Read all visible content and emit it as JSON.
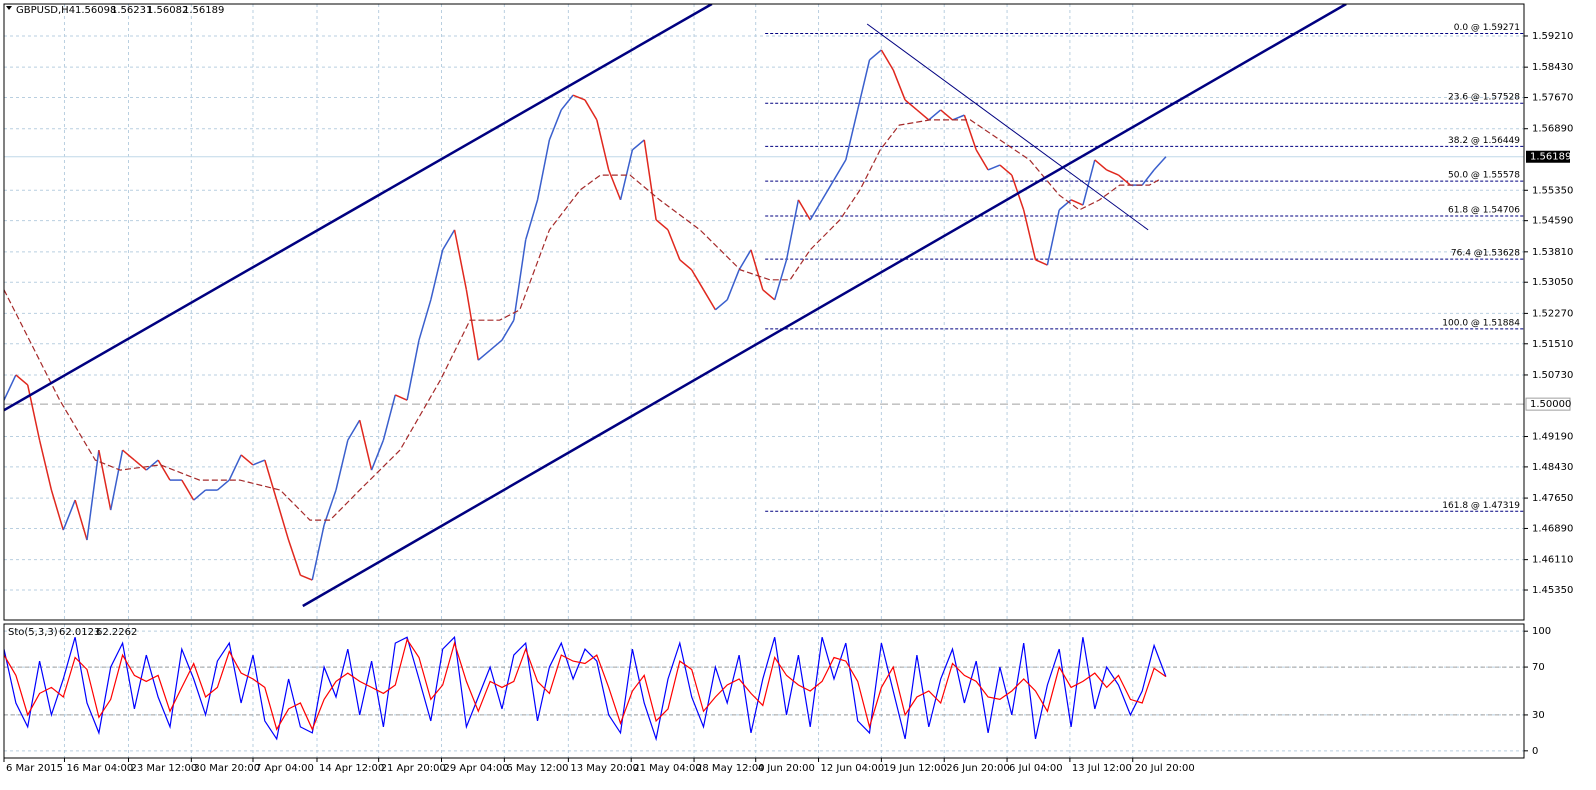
{
  "chart_data": [
    {
      "type": "line",
      "title": "GBPUSD,H4",
      "quote": [
        1.56098,
        1.56231,
        1.56082,
        1.56189
      ],
      "xlim": [
        0,
        128.2
      ],
      "ylim": [
        1.446,
        1.6001
      ],
      "grid": true,
      "xticks": [
        {
          "value": 0,
          "label": "6 Mar 2015"
        },
        {
          "value": 5.1,
          "label": "16 Mar 04:00"
        },
        {
          "value": 10.5,
          "label": "23 Mar 12:00"
        },
        {
          "value": 15.8,
          "label": "30 Mar 20:00"
        },
        {
          "value": 21,
          "label": "7 Apr 04:00"
        },
        {
          "value": 26.4,
          "label": "14 Apr 12:00"
        },
        {
          "value": 31.6,
          "label": "21 Apr 20:00"
        },
        {
          "value": 36.9,
          "label": "29 Apr 04:00"
        },
        {
          "value": 42.2,
          "label": "6 May 12:00"
        },
        {
          "value": 47.6,
          "label": "13 May 20:00"
        },
        {
          "value": 52.9,
          "label": "21 May 04:00"
        },
        {
          "value": 58.2,
          "label": "28 May 12:00"
        },
        {
          "value": 63.4,
          "label": "4 Jun 20:00"
        },
        {
          "value": 68.7,
          "label": "12 Jun 04:00"
        },
        {
          "value": 74,
          "label": "19 Jun 12:00"
        },
        {
          "value": 79.3,
          "label": "26 Jun 20:00"
        },
        {
          "value": 84.6,
          "label": "6 Jul 04:00"
        },
        {
          "value": 89.9,
          "label": "13 Jul 12:00"
        },
        {
          "value": 95.2,
          "label": "20 Jul 20:00"
        }
      ],
      "yticks": [
        {
          "value": 1.5921,
          "label": "1.59210"
        },
        {
          "value": 1.5843,
          "label": "1.58430"
        },
        {
          "value": 1.5767,
          "label": "1.57670"
        },
        {
          "value": 1.5689,
          "label": "1.56890"
        },
        {
          "value": 1.5535,
          "label": "1.55350"
        },
        {
          "value": 1.5459,
          "label": "1.54590"
        },
        {
          "value": 1.5381,
          "label": "1.53810"
        },
        {
          "value": 1.5305,
          "label": "1.53050"
        },
        {
          "value": 1.5227,
          "label": "1.52270"
        },
        {
          "value": 1.5151,
          "label": "1.51510"
        },
        {
          "value": 1.5073,
          "label": "1.50730"
        },
        {
          "value": 1.4919,
          "label": "1.49190"
        },
        {
          "value": 1.4843,
          "label": "1.48430"
        },
        {
          "value": 1.4765,
          "label": "1.47650"
        },
        {
          "value": 1.4689,
          "label": "1.46890"
        },
        {
          "value": 1.4611,
          "label": "1.46110"
        },
        {
          "value": 1.4535,
          "label": "1.45350"
        }
      ],
      "series": [
        {
          "values": [
            1.501,
            1.5073,
            1.5048,
            1.491,
            1.4785,
            1.4685,
            1.476,
            1.466,
            1.4885,
            1.4735,
            1.4885,
            1.486,
            1.4835,
            1.486,
            1.481,
            1.481,
            1.476,
            1.4785,
            1.4785,
            1.481,
            1.4873,
            1.4848,
            1.486,
            1.476,
            1.466,
            1.4572,
            1.456,
            1.4698,
            1.4785,
            1.491,
            1.496,
            1.4835,
            1.491,
            1.5023,
            1.501,
            1.516,
            1.5261,
            1.5386,
            1.5436,
            1.5286,
            1.511,
            1.5135,
            1.516,
            1.521,
            1.5411,
            1.5511,
            1.5661,
            1.5736,
            1.5773,
            1.5761,
            1.5711,
            1.5586,
            1.5511,
            1.5636,
            1.5661,
            1.5461,
            1.5436,
            1.5361,
            1.5336,
            1.5286,
            1.5236,
            1.5261,
            1.5336,
            1.5386,
            1.5286,
            1.5261,
            1.5361,
            1.5511,
            1.5461,
            1.5511,
            1.5561,
            1.5611,
            1.5736,
            1.5861,
            1.5886,
            1.5836,
            1.5761,
            1.5736,
            1.5711,
            1.5736,
            1.5711,
            1.5723,
            1.5636,
            1.5586,
            1.5598,
            1.5573,
            1.5486,
            1.5361,
            1.5348,
            1.5486,
            1.5511,
            1.5498,
            1.5611,
            1.5586,
            1.5573,
            1.5548,
            1.5548,
            1.5586,
            1.5619
          ],
          "up_color": "#3a5fcd",
          "down_color": "#e0281e"
        },
        {
          "x": [
            0,
            4.7,
            7.7,
            9.8,
            13.2,
            16.5,
            19.9,
            23.3,
            25.8,
            27.5,
            30,
            33.4,
            36.8,
            39.3,
            41.8,
            43.5,
            46,
            48.6,
            50.3,
            52.8,
            55.3,
            58.7,
            62.1,
            64.6,
            66.3,
            68,
            70.5,
            72.2,
            73.9,
            75.5,
            78.1,
            81.5,
            84,
            86.5,
            89,
            90.7,
            92.4,
            94.1,
            96.6,
            97.4
          ],
          "values": [
            1.5286,
            1.501,
            1.486,
            1.4835,
            1.4848,
            1.481,
            1.481,
            1.4785,
            1.471,
            1.471,
            1.4785,
            1.4885,
            1.506,
            1.521,
            1.521,
            1.5236,
            1.5436,
            1.5536,
            1.5573,
            1.5573,
            1.5511,
            1.5436,
            1.5336,
            1.5311,
            1.5311,
            1.5386,
            1.5461,
            1.5536,
            1.5636,
            1.5698,
            1.5711,
            1.5711,
            1.5661,
            1.5611,
            1.5523,
            1.5486,
            1.5511,
            1.5548,
            1.5548,
            1.5561
          ],
          "color": "#a52a2a",
          "dashed": true
        }
      ],
      "trendlines": [
        {
          "x": [
            0,
            59.7
          ],
          "y": [
            1.4985,
            1.6001
          ],
          "color": "#000080",
          "width": 2.5
        },
        {
          "x": [
            25.2,
            113.2
          ],
          "y": [
            1.4495,
            1.6001
          ],
          "color": "#000080",
          "width": 2.5
        },
        {
          "x": [
            72.8,
            96.5
          ],
          "y": [
            1.5951,
            1.5436
          ],
          "color": "#000080",
          "width": 1
        }
      ],
      "fibonacci_from": 64.2,
      "fibonacci": [
        {
          "value": 1.59271,
          "label": "0.0 @ 1.59271"
        },
        {
          "value": 1.57528,
          "label": "23.6 @ 1.57528"
        },
        {
          "value": 1.56449,
          "label": "38.2 @ 1.56449"
        },
        {
          "value": 1.55578,
          "label": "50.0 @ 1.55578"
        },
        {
          "value": 1.54706,
          "label": "61.8 @ 1.54706"
        },
        {
          "value": 1.53628,
          "label": "76.4 @1.53628"
        },
        {
          "value": 1.51884,
          "label": "100.0 @ 1.51884"
        },
        {
          "value": 1.47319,
          "label": "161.8 @ 1.47319"
        }
      ],
      "price_line": 1.56189,
      "level_line": {
        "value": 1.5,
        "label": "1.50000"
      }
    },
    {
      "type": "line",
      "title": "Sto(5,3,3)",
      "title_values": [
        62.0123,
        62.2262
      ],
      "xlim": [
        0,
        128.2
      ],
      "ylim": [
        -6,
        106
      ],
      "yticks": [
        0,
        30,
        70,
        100
      ],
      "levels": [
        30,
        70
      ],
      "grid": true,
      "series": [
        {
          "values": [
            85,
            40,
            20,
            75,
            30,
            60,
            95,
            40,
            15,
            70,
            90,
            35,
            80,
            45,
            20,
            85,
            60,
            30,
            75,
            90,
            40,
            80,
            25,
            10,
            60,
            20,
            15,
            70,
            45,
            85,
            30,
            75,
            20,
            90,
            95,
            60,
            25,
            85,
            95,
            20,
            45,
            70,
            35,
            80,
            90,
            25,
            70,
            90,
            60,
            85,
            75,
            30,
            15,
            85,
            40,
            10,
            60,
            90,
            45,
            20,
            70,
            40,
            80,
            15,
            60,
            95,
            30,
            80,
            20,
            95,
            60,
            90,
            25,
            15,
            90,
            50,
            10,
            80,
            20,
            60,
            85,
            40,
            75,
            15,
            70,
            30,
            90,
            10,
            55,
            85,
            20,
            95,
            35,
            70,
            55,
            30,
            50,
            88,
            62
          ],
          "color": "#0000ff"
        },
        {
          "values": [
            80,
            63,
            30,
            48,
            53,
            45,
            78,
            68,
            28,
            43,
            80,
            63,
            58,
            63,
            33,
            53,
            73,
            45,
            53,
            83,
            65,
            60,
            53,
            18,
            35,
            40,
            18,
            43,
            58,
            65,
            58,
            53,
            48,
            55,
            93,
            78,
            43,
            55,
            90,
            58,
            33,
            58,
            53,
            58,
            85,
            58,
            48,
            80,
            75,
            73,
            80,
            53,
            23,
            50,
            63,
            25,
            35,
            75,
            68,
            33,
            45,
            55,
            60,
            48,
            38,
            78,
            63,
            55,
            50,
            58,
            78,
            75,
            58,
            20,
            53,
            70,
            30,
            45,
            50,
            40,
            73,
            63,
            58,
            45,
            43,
            50,
            60,
            50,
            33,
            70,
            53,
            58,
            65,
            53,
            63,
            43,
            40,
            69,
            62
          ],
          "color": "#ff0000"
        }
      ]
    }
  ]
}
